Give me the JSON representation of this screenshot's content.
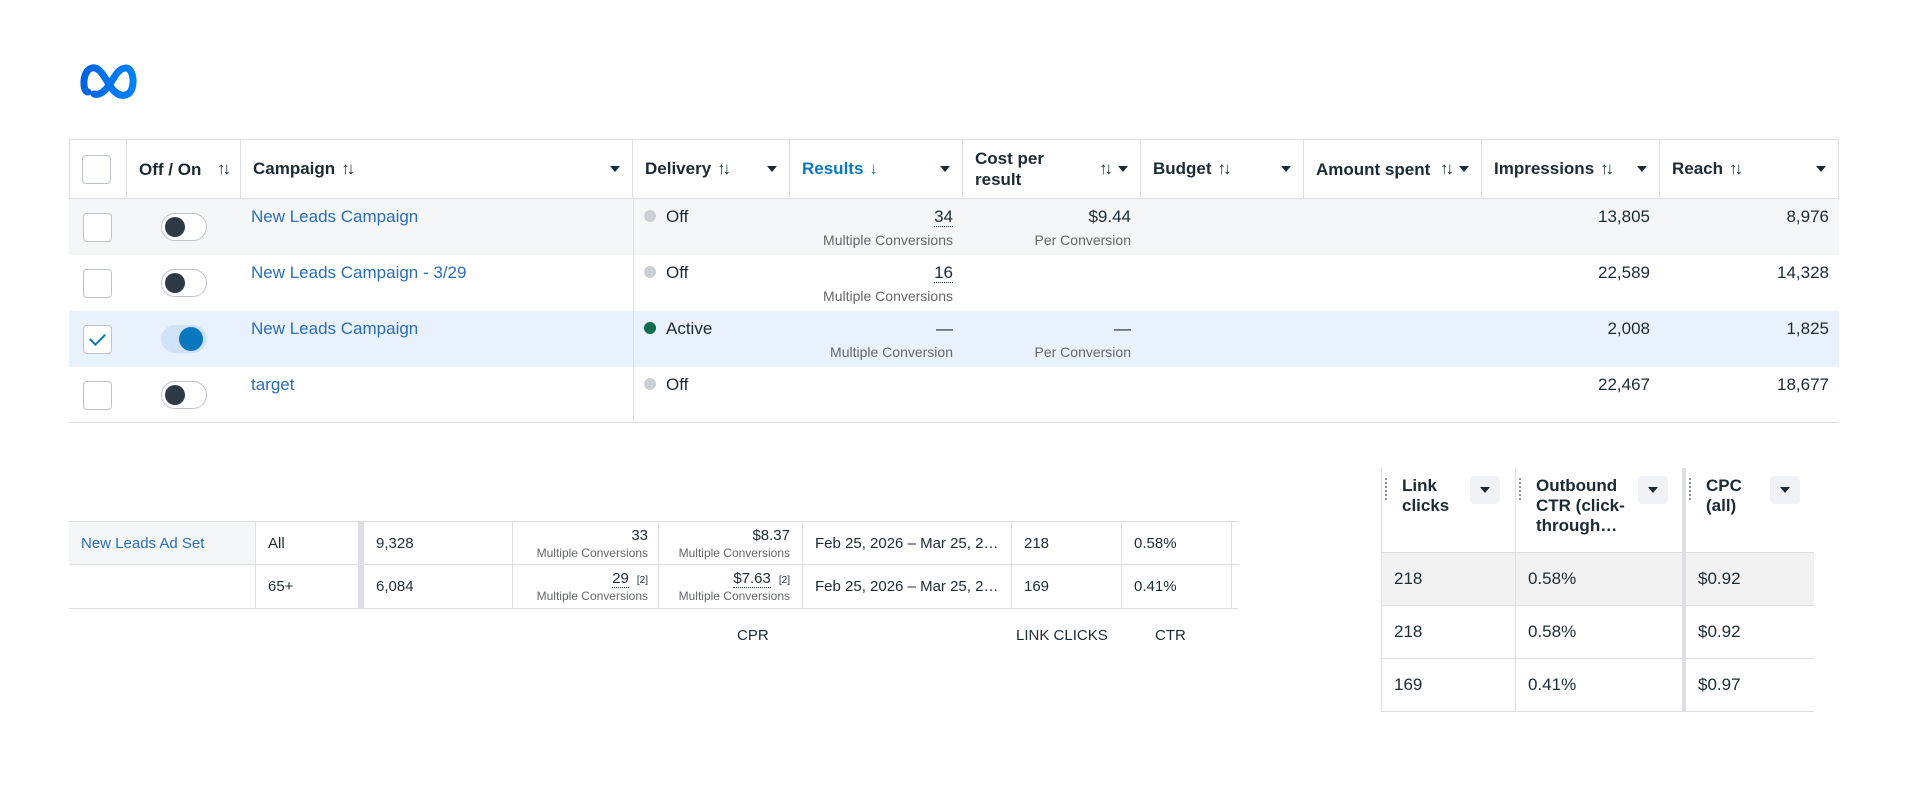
{
  "brand": {
    "logo": "meta-logo-icon",
    "color": "#0a78be"
  },
  "campaign_table": {
    "headers": {
      "toggle": "Off / On",
      "campaign": "Campaign",
      "delivery": "Delivery",
      "results": "Results",
      "cost_per_result": "Cost per result",
      "budget": "Budget",
      "amount_spent": "Amount spent",
      "impressions": "Impressions",
      "reach": "Reach"
    },
    "rows": [
      {
        "name": "New Leads Campaign",
        "checked": false,
        "on": false,
        "delivery": "Off",
        "results": "34",
        "results_sub": "Multiple Conversions",
        "cpr": "$9.44",
        "cpr_sub": "Per Conversion",
        "impressions": "13,805",
        "reach": "8,976"
      },
      {
        "name": "New Leads Campaign - 3/29",
        "checked": false,
        "on": false,
        "delivery": "Off",
        "results": "16",
        "results_sub": "Multiple Conversions",
        "cpr": "",
        "cpr_sub": "",
        "impressions": "22,589",
        "reach": "14,328"
      },
      {
        "name": "New Leads Campaign",
        "checked": true,
        "on": true,
        "delivery": "Active",
        "results": "—",
        "results_sub": "Multiple Conversion",
        "cpr": "—",
        "cpr_sub": "Per Conversion",
        "impressions": "2,008",
        "reach": "1,825"
      },
      {
        "name": "target",
        "checked": false,
        "on": false,
        "delivery": "Off",
        "results": "",
        "results_sub": "",
        "cpr": "",
        "cpr_sub": "",
        "impressions": "22,467",
        "reach": "18,677"
      }
    ]
  },
  "adset_table": {
    "rows": [
      {
        "name": "New Leads Ad Set",
        "age": "All",
        "impressions": "9,328",
        "results": "33",
        "results_sub": "Multiple Conversions",
        "cpr": "$8.37",
        "cpr_sub": "Multiple Conversions",
        "date": "Feb 25, 2026 – Mar 25, 2…",
        "link_clicks": "218",
        "ctr": "0.58%"
      },
      {
        "name": "",
        "age": "65+",
        "impressions": "6,084",
        "results": "29",
        "results_badge": "[2]",
        "results_sub": "Multiple Conversions",
        "cpr": "$7.63",
        "cpr_badge": "[2]",
        "cpr_sub": "Multiple Conversions",
        "date": "Feb 25, 2026 – Mar 25, 2…",
        "link_clicks": "169",
        "ctr": "0.41%"
      }
    ],
    "captions": {
      "cpr": "CPR",
      "link_clicks": "LINK CLICKS",
      "ctr": "CTR"
    }
  },
  "metrics_table": {
    "headers": {
      "link_clicks": "Link clicks",
      "outbound_ctr": "Outbound CTR (click-through…",
      "cpc": "CPC (all)"
    },
    "rows": [
      {
        "link_clicks": "218",
        "outbound_ctr": "0.58%",
        "cpc": "$0.92"
      },
      {
        "link_clicks": "218",
        "outbound_ctr": "0.58%",
        "cpc": "$0.92"
      },
      {
        "link_clicks": "169",
        "outbound_ctr": "0.41%",
        "cpc": "$0.97"
      }
    ]
  }
}
